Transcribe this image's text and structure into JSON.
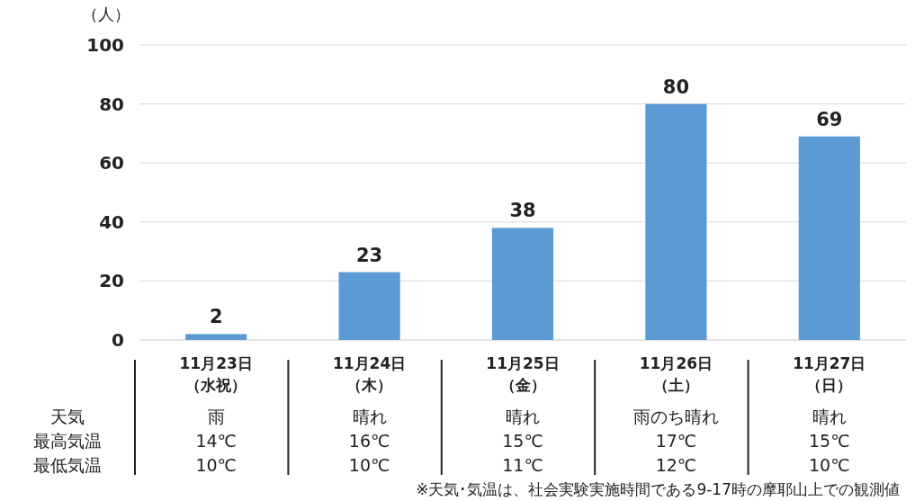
{
  "chart_data": {
    "type": "bar",
    "ylabel": "（人）",
    "categories": [
      "11月23日（水祝）",
      "11月24日（木）",
      "11月25日（金）",
      "11月26日（土）",
      "11月27日（日）"
    ],
    "values": [
      2,
      23,
      38,
      80,
      69
    ],
    "color": "#5b9bd5",
    "data_labels": true,
    "ylim": [
      0,
      100
    ],
    "yticks": [
      0,
      20,
      40,
      60,
      80,
      100
    ],
    "grid": "y",
    "annotations": [
      "天気",
      "最高気温",
      "最低気温",
      "雨",
      "晴れ",
      "晴れ",
      "雨のち晴れ",
      "晴れ",
      "14℃",
      "16℃",
      "15℃",
      "17℃",
      "15℃",
      "10℃",
      "10℃",
      "11℃",
      "12℃",
      "10℃",
      "※天気･気温は、社会実験実施時間である9-17時の摩耶山上での観測値"
    ]
  }
}
